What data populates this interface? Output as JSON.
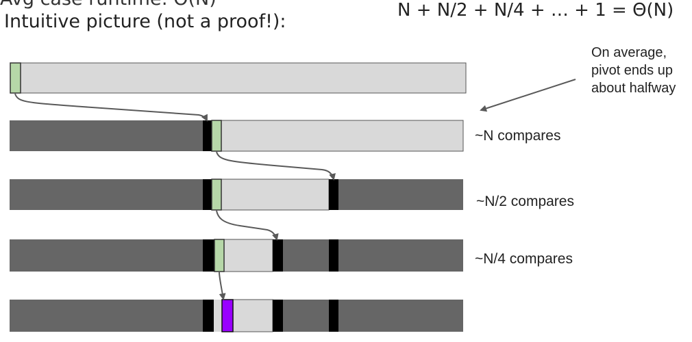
{
  "header_cut_text": "Avg case runtime: Θ(N)",
  "subtitle": "Intuitive picture (not a proof!):",
  "formula": "N + N/2 + N/4 + … + 1 = Θ(N)",
  "annotation": {
    "line1": "On average,",
    "line2": "pivot ends up",
    "line3": "about halfway"
  },
  "compare_labels": [
    "~N compares",
    "~N/2 compares",
    "~N/4 compares"
  ],
  "colors": {
    "unsorted": "#d9d9d9",
    "done": "#666666",
    "fixed_pivot": "#000000",
    "current_pivot": "#b6d7a8",
    "final_pivot": "#9900ff",
    "arrow": "#595959"
  }
}
